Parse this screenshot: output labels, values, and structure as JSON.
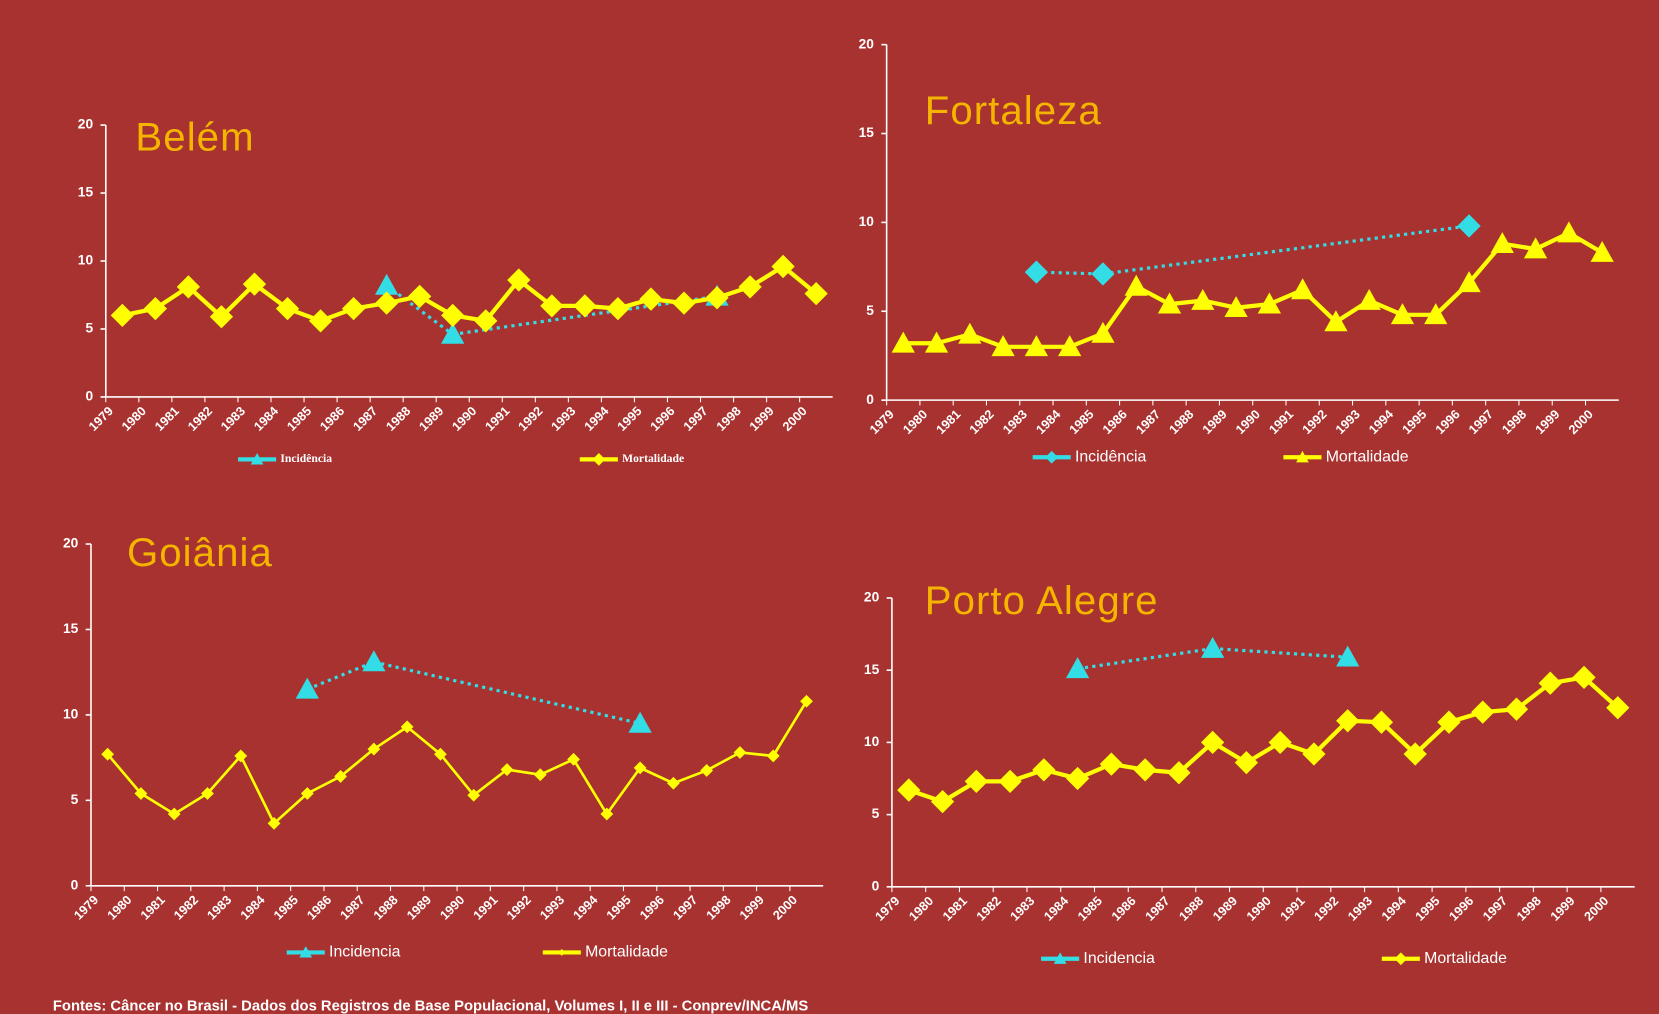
{
  "chart_data": [
    {
      "type": "line",
      "title": "Belém",
      "categories": [
        "1979",
        "1980",
        "1981",
        "1982",
        "1983",
        "1984",
        "1985",
        "1986",
        "1987",
        "1988",
        "1989",
        "1990",
        "1991",
        "1992",
        "1993",
        "1994",
        "1995",
        "1996",
        "1997",
        "1998",
        "1999",
        "2000"
      ],
      "ylim": [
        0,
        20
      ],
      "yticks": [
        0,
        5,
        10,
        15,
        20
      ],
      "legend_font": "serif",
      "series": [
        {
          "name": "Incidência",
          "color": "#33dde6",
          "marker": "triangle",
          "dotted": true,
          "values": [
            null,
            null,
            null,
            null,
            null,
            null,
            null,
            null,
            8.2,
            null,
            4.6,
            null,
            null,
            null,
            null,
            null,
            null,
            null,
            7.4,
            null,
            null,
            null
          ]
        },
        {
          "name": "Mortalidade",
          "color": "#ffff00",
          "marker": "diamond",
          "values": [
            6.0,
            6.5,
            8.1,
            5.9,
            8.3,
            6.5,
            5.6,
            6.5,
            6.9,
            7.4,
            6.0,
            5.6,
            8.6,
            6.7,
            6.7,
            6.5,
            7.2,
            6.9,
            7.3,
            8.1,
            9.6,
            7.6
          ]
        }
      ]
    },
    {
      "type": "line",
      "title": "Fortaleza",
      "categories": [
        "1979",
        "1980",
        "1981",
        "1982",
        "1983",
        "1984",
        "1985",
        "1986",
        "1987",
        "1988",
        "1989",
        "1990",
        "1991",
        "1992",
        "1993",
        "1994",
        "1995",
        "1996",
        "1997",
        "1998",
        "1999",
        "2000"
      ],
      "ylim": [
        0,
        20
      ],
      "yticks": [
        0,
        5,
        10,
        15,
        20
      ],
      "series": [
        {
          "name": "Incidência",
          "color": "#33dde6",
          "marker": "diamond",
          "dotted": true,
          "values": [
            null,
            null,
            null,
            null,
            7.2,
            null,
            7.1,
            null,
            null,
            null,
            null,
            null,
            null,
            null,
            null,
            null,
            null,
            9.8,
            null,
            null,
            null,
            null
          ]
        },
        {
          "name": "Mortalidade",
          "color": "#ffff00",
          "marker": "triangle",
          "values": [
            3.2,
            3.2,
            3.7,
            3.0,
            3.0,
            3.0,
            3.75,
            6.4,
            5.4,
            5.6,
            5.2,
            5.4,
            6.2,
            4.4,
            5.6,
            4.8,
            4.8,
            6.6,
            8.8,
            8.5,
            9.4,
            8.3
          ]
        }
      ]
    },
    {
      "type": "line",
      "title": "Goiânia",
      "categories": [
        "1979",
        "1980",
        "1981",
        "1982",
        "1983",
        "1984",
        "1985",
        "1986",
        "1987",
        "1988",
        "1989",
        "1990",
        "1991",
        "1992",
        "1993",
        "1994",
        "1995",
        "1996",
        "1997",
        "1998",
        "1999",
        "2000"
      ],
      "ylim": [
        0,
        20
      ],
      "yticks": [
        0,
        5,
        10,
        15,
        20
      ],
      "series": [
        {
          "name": "Incidencia",
          "color": "#33dde6",
          "marker": "triangle",
          "dotted": true,
          "values": [
            null,
            null,
            null,
            null,
            null,
            null,
            11.5,
            null,
            13.1,
            null,
            null,
            null,
            null,
            null,
            null,
            null,
            9.5,
            null,
            null,
            null,
            null,
            null
          ]
        },
        {
          "name": "Mortalidade",
          "color": "#ffff00",
          "marker": "smalldiamond",
          "thin": true,
          "values": [
            7.7,
            5.4,
            4.2,
            5.4,
            7.6,
            3.65,
            5.4,
            6.4,
            8.0,
            9.3,
            7.7,
            5.3,
            6.8,
            6.5,
            7.4,
            4.2,
            6.9,
            6.0,
            6.75,
            7.8,
            7.6,
            10.8
          ]
        }
      ]
    },
    {
      "type": "line",
      "title": "Porto Alegre",
      "categories": [
        "1979",
        "1980",
        "1981",
        "1982",
        "1983",
        "1984",
        "1985",
        "1986",
        "1987",
        "1988",
        "1989",
        "1990",
        "1991",
        "1992",
        "1993",
        "1994",
        "1995",
        "1996",
        "1997",
        "1998",
        "1999",
        "2000"
      ],
      "ylim": [
        0,
        20
      ],
      "yticks": [
        0,
        5,
        10,
        15,
        20
      ],
      "series": [
        {
          "name": "Incidencia",
          "color": "#33dde6",
          "marker": "triangle",
          "dotted": true,
          "values": [
            null,
            null,
            null,
            null,
            null,
            15.1,
            null,
            null,
            null,
            16.5,
            null,
            null,
            null,
            15.9,
            null,
            null,
            null,
            null,
            null,
            null,
            null,
            null
          ]
        },
        {
          "name": "Mortalidade",
          "color": "#ffff00",
          "marker": "diamond",
          "values": [
            6.7,
            5.9,
            7.3,
            7.3,
            8.1,
            7.5,
            8.5,
            8.1,
            7.9,
            10.0,
            8.6,
            10.0,
            9.2,
            11.5,
            11.4,
            9.2,
            11.4,
            12.1,
            12.3,
            14.1,
            14.5,
            12.4
          ]
        }
      ]
    }
  ],
  "footer": "Fontes: Câncer no Brasil - Dados dos Registros de Base Populacional, Volumes I, II e III  - Conprev/INCA/MS"
}
